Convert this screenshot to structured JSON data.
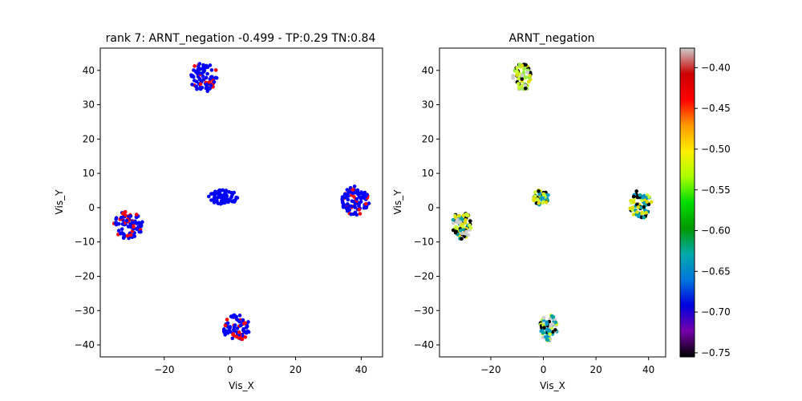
{
  "chart_data": [
    {
      "type": "scatter",
      "title": "rank 7: ARNT_negation -0.499 - TP:0.29 TN:0.84",
      "xlabel": "Vis_X",
      "ylabel": "Vis_Y",
      "xlim": [
        -39.5,
        46.5
      ],
      "ylim": [
        -43.5,
        46.5
      ],
      "xticks": [
        -20,
        0,
        20,
        40
      ],
      "yticks": [
        -40,
        -30,
        -20,
        -10,
        0,
        10,
        20,
        30,
        40
      ],
      "xtick_labels": [
        "−20",
        "0",
        "20",
        "40"
      ],
      "ytick_labels": [
        "−40",
        "−30",
        "−20",
        "−10",
        "0",
        "10",
        "20",
        "30",
        "40"
      ],
      "grid": false,
      "colors": {
        "negative": "#0000ff",
        "positive": "#ff0000"
      },
      "clusters": [
        {
          "center": [
            -8,
            38
          ],
          "radius": [
            4.5,
            4.2
          ],
          "red_fraction": 0.25,
          "count": 80
        },
        {
          "center": [
            -31,
            -5
          ],
          "radius": [
            4.5,
            4.2
          ],
          "red_fraction": 0.25,
          "count": 90
        },
        {
          "center": [
            -2,
            3
          ],
          "radius": [
            4.5,
            2.2
          ],
          "red_fraction": 0.0,
          "count": 70
        },
        {
          "center": [
            38,
            2
          ],
          "radius": [
            4.5,
            4.2
          ],
          "red_fraction": 0.15,
          "count": 90
        },
        {
          "center": [
            2,
            -35
          ],
          "radius": [
            4.2,
            3.8
          ],
          "red_fraction": 0.22,
          "count": 80
        }
      ]
    },
    {
      "type": "scatter",
      "title": "ARNT_negation",
      "xlabel": "Vis_X",
      "ylabel": "Vis_Y",
      "xlim": [
        -39.5,
        46.5
      ],
      "ylim": [
        -43.5,
        46.5
      ],
      "xticks": [
        -20,
        0,
        20,
        40
      ],
      "yticks": [
        -40,
        -30,
        -20,
        -10,
        0,
        10,
        20,
        30,
        40
      ],
      "xtick_labels": [
        "−20",
        "0",
        "20",
        "40"
      ],
      "ytick_labels": [
        "−40",
        "−30",
        "−20",
        "−10",
        "0",
        "10",
        "20",
        "30",
        "40"
      ],
      "grid": false,
      "colormap": "nipy_spectral",
      "clusters": [
        {
          "center": [
            -8,
            38
          ],
          "radius": [
            3.6,
            4.0
          ],
          "palette": [
            "#000000",
            "#cccccc",
            "#ccff33",
            "#99ee44",
            "#dddd00"
          ],
          "count": 70
        },
        {
          "center": [
            -31,
            -5
          ],
          "radius": [
            3.6,
            4.2
          ],
          "palette": [
            "#cccccc",
            "#000000",
            "#ccff33",
            "#00a0a0",
            "#dddd00"
          ],
          "count": 80
        },
        {
          "center": [
            -1,
            3
          ],
          "radius": [
            3.0,
            2.2
          ],
          "palette": [
            "#00a0a0",
            "#000000",
            "#ccff33",
            "#0099cc",
            "#dddd00"
          ],
          "count": 60
        },
        {
          "center": [
            37,
            1
          ],
          "radius": [
            4.2,
            4.2
          ],
          "palette": [
            "#000000",
            "#ccff33",
            "#00a0a0",
            "#dddd00",
            "#0099cc"
          ],
          "count": 80
        },
        {
          "center": [
            2,
            -35
          ],
          "radius": [
            3.4,
            3.8
          ],
          "palette": [
            "#ccff33",
            "#000000",
            "#00a0a0",
            "#cccccc",
            "#0099cc"
          ],
          "count": 75
        }
      ]
    }
  ],
  "colorbar": {
    "range": [
      -0.755,
      -0.376
    ],
    "ticks": [
      -0.75,
      -0.7,
      -0.65,
      -0.6,
      -0.55,
      -0.5,
      -0.45,
      -0.4
    ],
    "tick_labels": [
      "−0.75",
      "−0.70",
      "−0.65",
      "−0.60",
      "−0.55",
      "−0.50",
      "−0.45",
      "−0.40"
    ],
    "stops": [
      "#000000",
      "#7700aa",
      "#0000dd",
      "#0077dd",
      "#00aaaa",
      "#009900",
      "#00dd00",
      "#aaff00",
      "#ffee00",
      "#ff9900",
      "#ff0000",
      "#cc0000",
      "#cccccc"
    ]
  }
}
